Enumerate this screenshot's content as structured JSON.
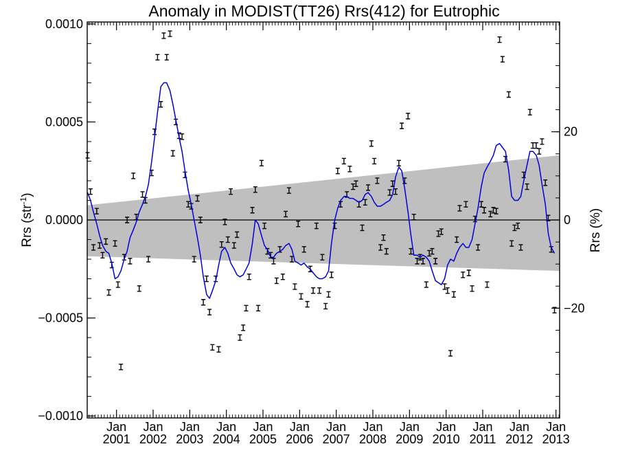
{
  "chart_data": {
    "type": "scatter",
    "title": "Anomaly in MODIST(TT26) Rrs(412) for Eutrophic",
    "ylabel_left": {
      "main": "Rrs (str",
      "sup": "-1",
      "end": ")"
    },
    "ylabel_right": "Rrs (%)",
    "x_tick_labels": [
      {
        "month": "Jan",
        "year": "2001"
      },
      {
        "month": "Jan",
        "year": "2002"
      },
      {
        "month": "Jan",
        "year": "2003"
      },
      {
        "month": "Jan",
        "year": "2004"
      },
      {
        "month": "Jan",
        "year": "2005"
      },
      {
        "month": "Jan",
        "year": "2006"
      },
      {
        "month": "Jan",
        "year": "2007"
      },
      {
        "month": "Jan",
        "year": "2008"
      },
      {
        "month": "Jan",
        "year": "2009"
      },
      {
        "month": "Jan",
        "year": "2010"
      },
      {
        "month": "Jan",
        "year": "2011"
      },
      {
        "month": "Jan",
        "year": "2012"
      },
      {
        "month": "Jan",
        "year": "2013"
      }
    ],
    "x_range": [
      2000.2,
      2013.1
    ],
    "ylim": [
      -0.00101,
      0.00101
    ],
    "y_ticks": [
      {
        "value": 0.001,
        "label": "0.0010"
      },
      {
        "value": 0.0005,
        "label": "0.0005"
      },
      {
        "value": 0.0,
        "label": "0.0000"
      },
      {
        "value": -0.0005,
        "label": "−0.0005"
      },
      {
        "value": -0.001,
        "label": "−0.0010"
      }
    ],
    "y_right_ticks": [
      {
        "value": 20,
        "label": "20"
      },
      {
        "value": 0,
        "label": "0"
      },
      {
        "value": -20,
        "label": "−20"
      }
    ],
    "y_right_per_unit": 2.25e-05,
    "zero_line": true,
    "band": {
      "start": [
        2000.2,
        7.5e-05,
        -0.000185
      ],
      "end": [
        2013.1,
        0.00033,
        -0.00026
      ],
      "color": "#bfbfbf"
    },
    "colors": {
      "points": "#000000",
      "smooth_line": "#0000dd",
      "band": "#bfbfbf",
      "axes": "#000000"
    },
    "points": [
      [
        2000.21,
        0.00033
      ],
      [
        2000.29,
        0.000145
      ],
      [
        2000.37,
        -0.00014
      ],
      [
        2000.46,
        4.5e-05
      ],
      [
        2000.54,
        -0.00013
      ],
      [
        2000.62,
        -0.00018
      ],
      [
        2000.71,
        -0.00011
      ],
      [
        2000.79,
        -0.00037
      ],
      [
        2000.87,
        -0.00023
      ],
      [
        2000.96,
        -0.00012
      ],
      [
        2001.04,
        -0.00033
      ],
      [
        2001.12,
        -0.00075
      ],
      [
        2001.21,
        -0.00019
      ],
      [
        2001.29,
        0.0
      ],
      [
        2001.37,
        -0.00021
      ],
      [
        2001.46,
        0.000225
      ],
      [
        2001.54,
        1.5e-05
      ],
      [
        2001.62,
        -0.00035
      ],
      [
        2001.71,
        0.00013
      ],
      [
        2001.79,
        0.0001
      ],
      [
        2001.87,
        -0.0002
      ],
      [
        2001.96,
        0.00024
      ],
      [
        2002.04,
        0.00045
      ],
      [
        2002.12,
        0.00083
      ],
      [
        2002.21,
        0.00059
      ],
      [
        2002.29,
        0.00094
      ],
      [
        2002.37,
        0.00083
      ],
      [
        2002.46,
        0.00095
      ],
      [
        2002.54,
        0.00034
      ],
      [
        2002.62,
        0.0005
      ],
      [
        2002.71,
        0.00043
      ],
      [
        2002.79,
        0.000425
      ],
      [
        2002.87,
        0.00023
      ],
      [
        2002.96,
        8e-05
      ],
      [
        2003.04,
        7e-05
      ],
      [
        2003.12,
        -0.0002
      ],
      [
        2003.21,
        0.00011
      ],
      [
        2003.29,
        0.0
      ],
      [
        2003.37,
        -0.00042
      ],
      [
        2003.46,
        -0.0003
      ],
      [
        2003.54,
        -0.00047
      ],
      [
        2003.62,
        -0.00065
      ],
      [
        2003.71,
        -0.0003
      ],
      [
        2003.79,
        -0.00066
      ],
      [
        2003.87,
        -0.000125
      ],
      [
        2003.96,
        -1e-05
      ],
      [
        2004.04,
        -0.0001
      ],
      [
        2004.12,
        0.000145
      ],
      [
        2004.21,
        -0.00013
      ],
      [
        2004.29,
        -7.5e-05
      ],
      [
        2004.37,
        -0.0006
      ],
      [
        2004.46,
        -0.00055
      ],
      [
        2004.54,
        -0.00045
      ],
      [
        2004.62,
        -0.00029
      ],
      [
        2004.71,
        5e-05
      ],
      [
        2004.79,
        0.000155
      ],
      [
        2004.87,
        -0.00045
      ],
      [
        2004.96,
        0.00029
      ],
      [
        2005.04,
        -3e-05
      ],
      [
        2005.12,
        -0.00016
      ],
      [
        2005.21,
        -0.00018
      ],
      [
        2005.29,
        -0.00021
      ],
      [
        2005.37,
        -0.00031
      ],
      [
        2005.46,
        -0.00015
      ],
      [
        2005.54,
        -0.00029
      ],
      [
        2005.62,
        3e-05
      ],
      [
        2005.71,
        0.00015
      ],
      [
        2005.79,
        -0.0002
      ],
      [
        2005.87,
        -0.00034
      ],
      [
        2005.96,
        -2e-05
      ],
      [
        2006.04,
        -0.00039
      ],
      [
        2006.12,
        -0.00015
      ],
      [
        2006.21,
        -0.00043
      ],
      [
        2006.29,
        -0.00025
      ],
      [
        2006.37,
        -0.00036
      ],
      [
        2006.46,
        -3e-05
      ],
      [
        2006.54,
        -0.00036
      ],
      [
        2006.62,
        -0.00019
      ],
      [
        2006.71,
        -0.00044
      ],
      [
        2006.79,
        -0.00038
      ],
      [
        2006.87,
        -0.00028
      ],
      [
        2006.96,
        -3e-05
      ],
      [
        2007.04,
        0.00025
      ],
      [
        2007.12,
        8e-05
      ],
      [
        2007.21,
        0.0003
      ],
      [
        2007.29,
        0.00013
      ],
      [
        2007.37,
        0.00026
      ],
      [
        2007.46,
        0.00017
      ],
      [
        2007.54,
        0.000185
      ],
      [
        2007.62,
        8e-05
      ],
      [
        2007.71,
        -4e-05
      ],
      [
        2007.79,
        9e-05
      ],
      [
        2007.87,
        0.000165
      ],
      [
        2007.96,
        0.00039
      ],
      [
        2008.04,
        0.0003
      ],
      [
        2008.12,
        0.0002
      ],
      [
        2008.21,
        -0.00014
      ],
      [
        2008.29,
        -9e-05
      ],
      [
        2008.37,
        -0.00016
      ],
      [
        2008.46,
        0.00014
      ],
      [
        2008.54,
        0.000185
      ],
      [
        2008.62,
        0.000145
      ],
      [
        2008.71,
        0.00029
      ],
      [
        2008.79,
        0.00048
      ],
      [
        2008.87,
        0.0002
      ],
      [
        2008.96,
        0.00053
      ],
      [
        2009.04,
        -0.00016
      ],
      [
        2009.12,
        1.5e-05
      ],
      [
        2009.21,
        -0.00021
      ],
      [
        2009.29,
        -0.00019
      ],
      [
        2009.37,
        -0.00021
      ],
      [
        2009.46,
        -0.00033
      ],
      [
        2009.54,
        -0.00017
      ],
      [
        2009.62,
        -0.00016
      ],
      [
        2009.71,
        -0.00021
      ],
      [
        2009.79,
        -7e-05
      ],
      [
        2009.87,
        -6e-05
      ],
      [
        2009.96,
        -0.00034
      ],
      [
        2010.04,
        -0.00036
      ],
      [
        2010.12,
        -0.00068
      ],
      [
        2010.21,
        -0.00038
      ],
      [
        2010.29,
        -0.0001
      ],
      [
        2010.37,
        6e-05
      ],
      [
        2010.46,
        -0.00028
      ],
      [
        2010.54,
        8e-05
      ],
      [
        2010.62,
        -0.00027
      ],
      [
        2010.71,
        -0.00035
      ],
      [
        2010.79,
        5e-06
      ],
      [
        2010.87,
        -0.00014
      ],
      [
        2010.96,
        8e-05
      ],
      [
        2011.04,
        5e-05
      ],
      [
        2011.12,
        -0.00033
      ],
      [
        2011.21,
        3e-05
      ],
      [
        2011.29,
        5e-05
      ],
      [
        2011.37,
        4.5e-05
      ],
      [
        2011.46,
        0.00092
      ],
      [
        2011.54,
        0.00082
      ],
      [
        2011.62,
        0.00031
      ],
      [
        2011.71,
        0.00064
      ],
      [
        2011.79,
        -0.00012
      ],
      [
        2011.87,
        -4e-05
      ],
      [
        2011.96,
        -3e-05
      ],
      [
        2012.04,
        -0.00014
      ],
      [
        2012.12,
        0.00023
      ],
      [
        2012.21,
        0.00017
      ],
      [
        2012.29,
        0.00055
      ],
      [
        2012.37,
        0.00038
      ],
      [
        2012.46,
        0.00038
      ],
      [
        2012.54,
        0.00035
      ],
      [
        2012.62,
        0.0004
      ],
      [
        2012.71,
        0.00019
      ],
      [
        2012.79,
        1e-05
      ],
      [
        2012.87,
        -0.00015
      ],
      [
        2012.96,
        -0.00046
      ]
    ],
    "smooth_line": [
      [
        2000.21,
        0.00014
      ],
      [
        2000.29,
        0.0001
      ],
      [
        2000.37,
        4e-05
      ],
      [
        2000.46,
        -2e-05
      ],
      [
        2000.54,
        -8e-05
      ],
      [
        2000.62,
        -0.00013
      ],
      [
        2000.71,
        -0.00016
      ],
      [
        2000.79,
        -0.00017
      ],
      [
        2000.87,
        -0.00022
      ],
      [
        2000.96,
        -0.0003
      ],
      [
        2001.04,
        -0.00029
      ],
      [
        2001.12,
        -0.00026
      ],
      [
        2001.21,
        -0.0002
      ],
      [
        2001.29,
        -0.00016
      ],
      [
        2001.37,
        -9e-05
      ],
      [
        2001.46,
        -5e-05
      ],
      [
        2001.54,
        -1e-05
      ],
      [
        2001.62,
        4e-05
      ],
      [
        2001.71,
        8e-05
      ],
      [
        2001.79,
        0.00012
      ],
      [
        2001.87,
        0.00018
      ],
      [
        2001.96,
        0.0003
      ],
      [
        2002.04,
        0.00042
      ],
      [
        2002.12,
        0.00055
      ],
      [
        2002.21,
        0.00068
      ],
      [
        2002.29,
        0.0007
      ],
      [
        2002.37,
        0.0007
      ],
      [
        2002.46,
        0.00066
      ],
      [
        2002.54,
        0.00059
      ],
      [
        2002.62,
        0.00051
      ],
      [
        2002.71,
        0.00042
      ],
      [
        2002.79,
        0.00035
      ],
      [
        2002.87,
        0.00025
      ],
      [
        2002.96,
        0.00015
      ],
      [
        2003.04,
        8e-05
      ],
      [
        2003.12,
        0.0
      ],
      [
        2003.21,
        -9e-05
      ],
      [
        2003.29,
        -0.00018
      ],
      [
        2003.37,
        -0.00029
      ],
      [
        2003.46,
        -0.00038
      ],
      [
        2003.54,
        -0.0004
      ],
      [
        2003.62,
        -0.00036
      ],
      [
        2003.71,
        -0.00031
      ],
      [
        2003.79,
        -0.00023
      ],
      [
        2003.87,
        -0.00016
      ],
      [
        2003.96,
        -0.00014
      ],
      [
        2004.04,
        -0.00017
      ],
      [
        2004.12,
        -0.00022
      ],
      [
        2004.21,
        -0.00025
      ],
      [
        2004.29,
        -0.00028
      ],
      [
        2004.37,
        -0.00029
      ],
      [
        2004.46,
        -0.00028
      ],
      [
        2004.54,
        -0.00025
      ],
      [
        2004.62,
        -0.00022
      ],
      [
        2004.71,
        -0.00012
      ],
      [
        2004.79,
        0.0
      ],
      [
        2004.87,
        -2e-05
      ],
      [
        2004.96,
        -8e-05
      ],
      [
        2005.04,
        -0.00013
      ],
      [
        2005.12,
        -0.00015
      ],
      [
        2005.21,
        -0.00019
      ],
      [
        2005.29,
        -0.00019
      ],
      [
        2005.37,
        -0.00017
      ],
      [
        2005.46,
        -0.00016
      ],
      [
        2005.54,
        -0.00015
      ],
      [
        2005.62,
        -0.00013
      ],
      [
        2005.71,
        -0.00012
      ],
      [
        2005.79,
        -0.00015
      ],
      [
        2005.87,
        -0.00021
      ],
      [
        2005.96,
        -0.00022
      ],
      [
        2006.04,
        -0.00023
      ],
      [
        2006.12,
        -0.00022
      ],
      [
        2006.21,
        -0.00024
      ],
      [
        2006.29,
        -0.00025
      ],
      [
        2006.37,
        -0.00027
      ],
      [
        2006.46,
        -0.00029
      ],
      [
        2006.54,
        -0.0003
      ],
      [
        2006.62,
        -0.0003
      ],
      [
        2006.71,
        -0.00029
      ],
      [
        2006.79,
        -0.00026
      ],
      [
        2006.87,
        -0.00012
      ],
      [
        2006.96,
        0.0
      ],
      [
        2007.04,
        6e-05
      ],
      [
        2007.12,
        0.0001
      ],
      [
        2007.21,
        0.00012
      ],
      [
        2007.29,
        0.00012
      ],
      [
        2007.37,
        0.00011
      ],
      [
        2007.46,
        0.00011
      ],
      [
        2007.54,
        0.0001
      ],
      [
        2007.62,
        9e-05
      ],
      [
        2007.71,
        0.0001
      ],
      [
        2007.79,
        0.00013
      ],
      [
        2007.87,
        0.00014
      ],
      [
        2007.96,
        0.00012
      ],
      [
        2008.04,
        9e-05
      ],
      [
        2008.12,
        7e-05
      ],
      [
        2008.21,
        7e-05
      ],
      [
        2008.29,
        8e-05
      ],
      [
        2008.37,
        9e-05
      ],
      [
        2008.46,
        0.0001
      ],
      [
        2008.54,
        0.00013
      ],
      [
        2008.62,
        0.00022
      ],
      [
        2008.71,
        0.00027
      ],
      [
        2008.79,
        0.00025
      ],
      [
        2008.87,
        0.00016
      ],
      [
        2008.96,
        4e-05
      ],
      [
        2009.04,
        -8e-05
      ],
      [
        2009.12,
        -0.00018
      ],
      [
        2009.21,
        -0.00018
      ],
      [
        2009.29,
        -0.00019
      ],
      [
        2009.37,
        -0.00018
      ],
      [
        2009.46,
        -0.00019
      ],
      [
        2009.54,
        -0.00021
      ],
      [
        2009.62,
        -0.00026
      ],
      [
        2009.71,
        -0.00031
      ],
      [
        2009.79,
        -0.00032
      ],
      [
        2009.87,
        -0.00033
      ],
      [
        2009.96,
        -0.0003
      ],
      [
        2010.04,
        -0.00023
      ],
      [
        2010.12,
        -0.0002
      ],
      [
        2010.21,
        -0.00021
      ],
      [
        2010.29,
        -0.00017
      ],
      [
        2010.37,
        -0.00014
      ],
      [
        2010.46,
        -0.00012
      ],
      [
        2010.54,
        -0.00014
      ],
      [
        2010.62,
        -0.00014
      ],
      [
        2010.71,
        -0.0001
      ],
      [
        2010.79,
        -2e-05
      ],
      [
        2010.87,
        6e-05
      ],
      [
        2010.96,
        0.00017
      ],
      [
        2011.04,
        0.00024
      ],
      [
        2011.12,
        0.00027
      ],
      [
        2011.21,
        0.0003
      ],
      [
        2011.29,
        0.00033
      ],
      [
        2011.37,
        0.00038
      ],
      [
        2011.46,
        0.00039
      ],
      [
        2011.54,
        0.00037
      ],
      [
        2011.62,
        0.00035
      ],
      [
        2011.71,
        0.00025
      ],
      [
        2011.79,
        0.00012
      ],
      [
        2011.87,
        0.0001
      ],
      [
        2011.96,
        0.0001
      ],
      [
        2012.04,
        0.00012
      ],
      [
        2012.12,
        0.0002
      ],
      [
        2012.21,
        0.00028
      ],
      [
        2012.29,
        0.00035
      ],
      [
        2012.37,
        0.00035
      ],
      [
        2012.46,
        0.00033
      ],
      [
        2012.54,
        0.00028
      ],
      [
        2012.62,
        0.00018
      ],
      [
        2012.71,
        8e-05
      ],
      [
        2012.79,
        -7e-05
      ],
      [
        2012.87,
        -0.00014
      ],
      [
        2012.96,
        -0.00017
      ]
    ]
  }
}
